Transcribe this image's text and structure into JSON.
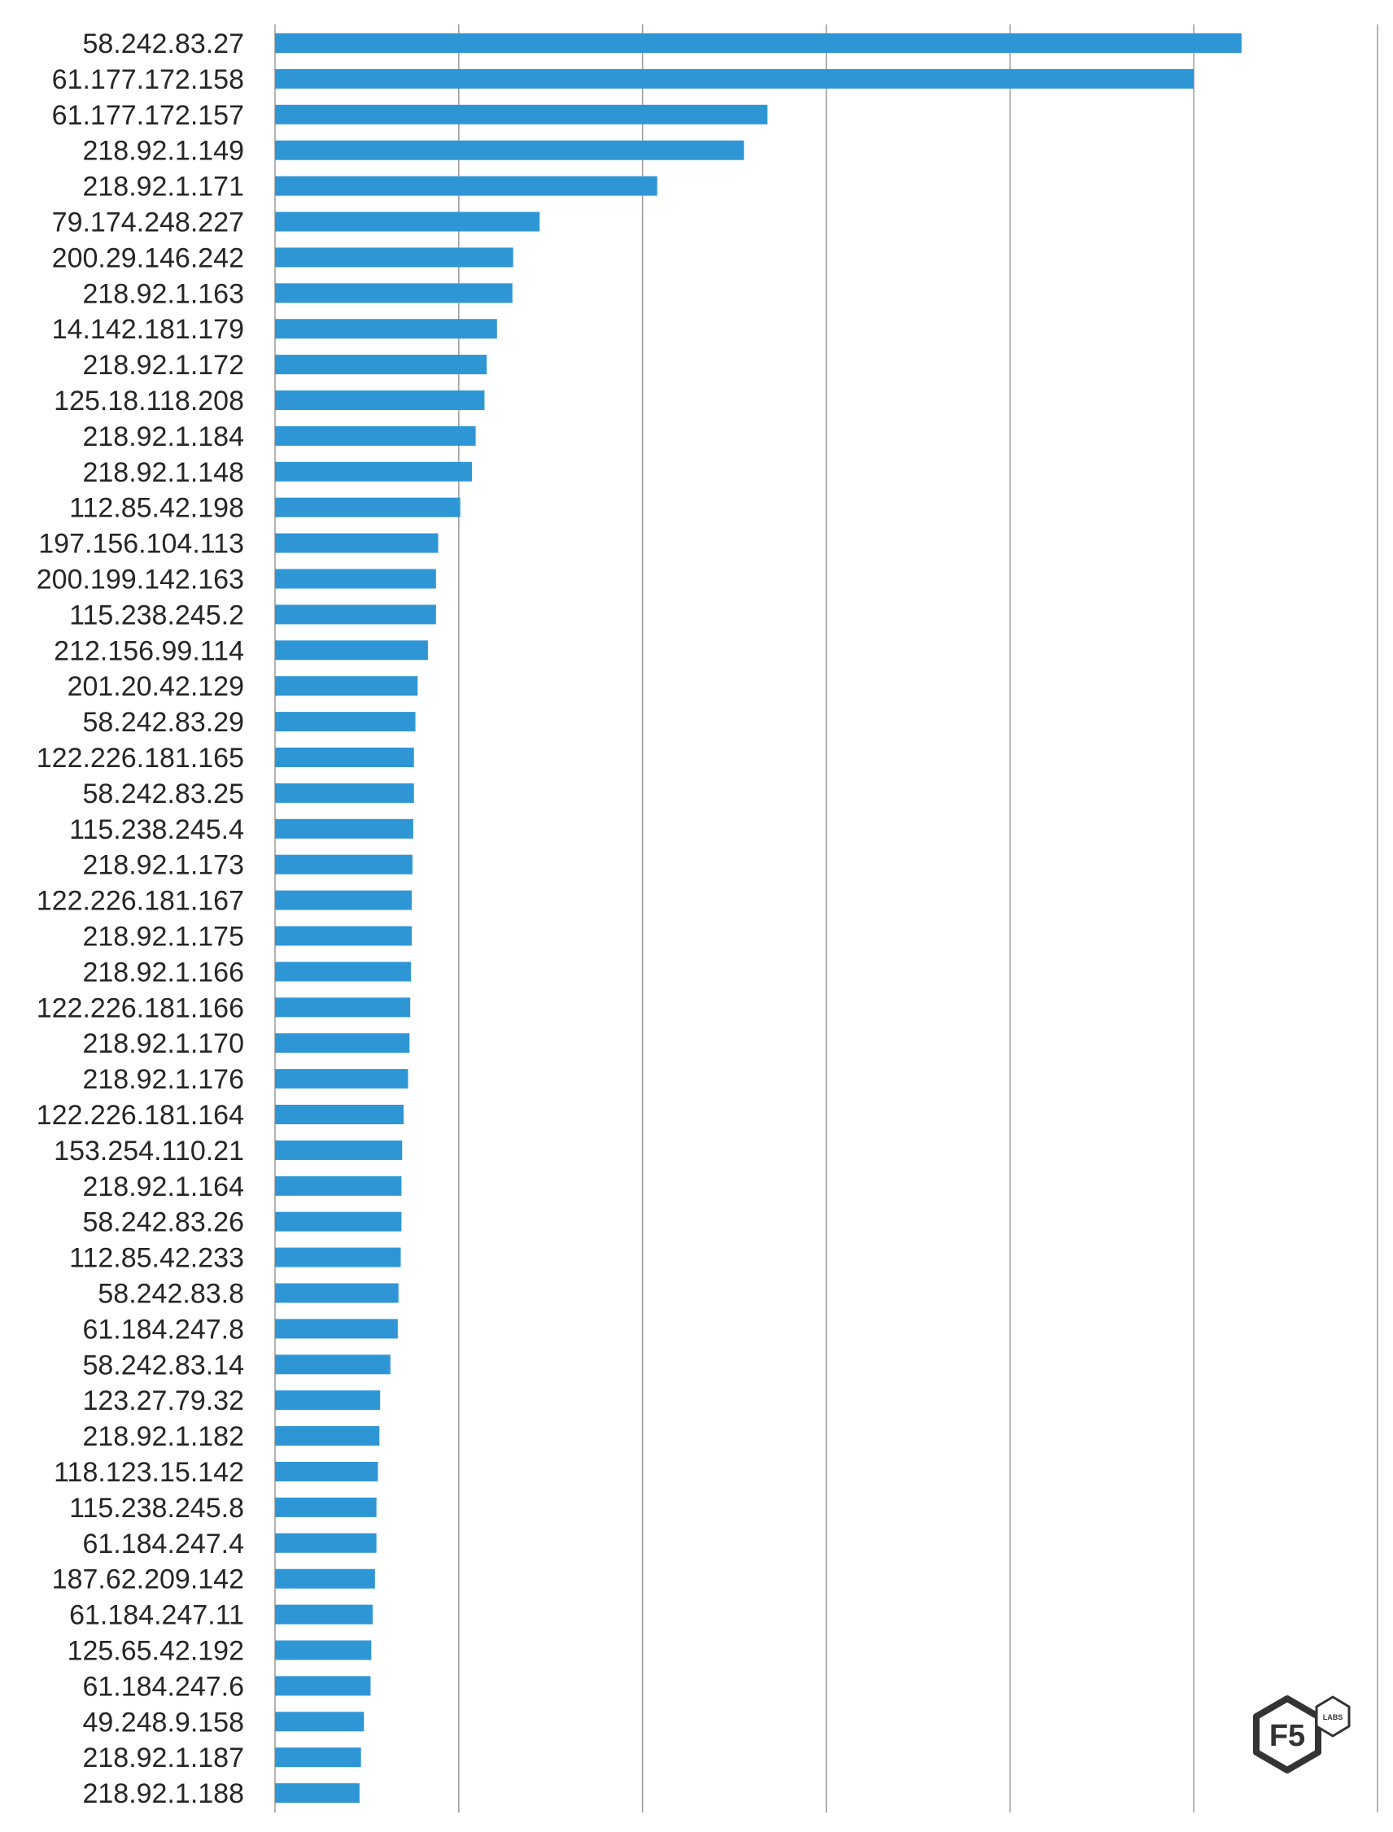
{
  "chart_data": {
    "type": "bar",
    "orientation": "horizontal",
    "title": "",
    "xlabel": "",
    "ylabel": "",
    "xlim": [
      0,
      30
    ],
    "grid": true,
    "bar_color": "#2f96d6",
    "grid_color": "#9a9a9a",
    "categories": [
      "58.242.83.27",
      "61.177.172.158",
      "61.177.172.157",
      "218.92.1.149",
      "218.92.1.171",
      "79.174.248.227",
      "200.29.146.242",
      "218.92.1.163",
      "14.142.181.179",
      "218.92.1.172",
      "125.18.118.208",
      "218.92.1.184",
      "218.92.1.148",
      "112.85.42.198",
      "197.156.104.113",
      "200.199.142.163",
      "115.238.245.2",
      "212.156.99.114",
      "201.20.42.129",
      "58.242.83.29",
      "122.226.181.165",
      "58.242.83.25",
      "115.238.245.4",
      "218.92.1.173",
      "122.226.181.167",
      "218.92.1.175",
      "218.92.1.166",
      "122.226.181.166",
      "218.92.1.170",
      "218.92.1.176",
      "122.226.181.164",
      "153.254.110.21",
      "218.92.1.164",
      "58.242.83.26",
      "112.85.42.233",
      "58.242.83.8",
      "61.184.247.8",
      "58.242.83.14",
      "123.27.79.32",
      "218.92.1.182",
      "118.123.15.142",
      "115.238.245.8",
      "61.184.247.4",
      "187.62.209.142",
      "61.184.247.11",
      "125.65.42.192",
      "61.184.247.6",
      "49.248.9.158",
      "218.92.1.187",
      "218.92.1.188"
    ],
    "values": [
      26.3,
      25.0,
      13.4,
      12.76,
      10.4,
      7.2,
      6.48,
      6.46,
      6.04,
      5.76,
      5.7,
      5.46,
      5.36,
      5.04,
      4.44,
      4.38,
      4.38,
      4.16,
      3.88,
      3.82,
      3.78,
      3.78,
      3.76,
      3.74,
      3.72,
      3.72,
      3.7,
      3.68,
      3.66,
      3.62,
      3.5,
      3.46,
      3.44,
      3.44,
      3.42,
      3.36,
      3.34,
      3.14,
      2.86,
      2.84,
      2.8,
      2.76,
      2.76,
      2.72,
      2.66,
      2.62,
      2.6,
      2.42,
      2.34,
      2.3
    ]
  },
  "logo": {
    "main_text": "F5",
    "badge_text": "LABS"
  }
}
